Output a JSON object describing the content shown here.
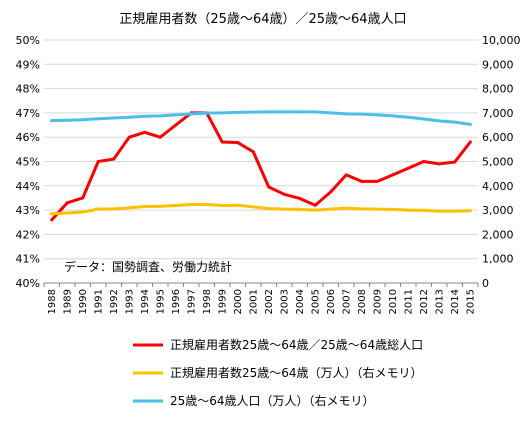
{
  "chart_data": {
    "type": "line",
    "title": "正規雇用者数（25歳～64歳）／25歳～64歳人口",
    "annotation": "データ：国勢調査、労働力統計",
    "x": [
      "1988",
      "1989",
      "1990",
      "1991",
      "1992",
      "1993",
      "1994",
      "1995",
      "1996",
      "1997",
      "1998",
      "1999",
      "2000",
      "2001",
      "2002",
      "2003",
      "2004",
      "2005",
      "2006",
      "2007",
      "2008",
      "2009",
      "2010",
      "2011",
      "2012",
      "2013",
      "2014",
      "2015"
    ],
    "y_left": {
      "min": 0.4,
      "max": 0.5,
      "step": 0.01,
      "tick_labels": [
        "40%",
        "41%",
        "42%",
        "43%",
        "44%",
        "45%",
        "46%",
        "47%",
        "48%",
        "49%",
        "50%"
      ]
    },
    "y_right": {
      "min": 0,
      "max": 10000,
      "step": 1000,
      "tick_labels": [
        "0",
        "1,000",
        "2,000",
        "3,000",
        "4,000",
        "5,000",
        "6,000",
        "7,000",
        "8,000",
        "9,000",
        "10,000"
      ]
    },
    "grid": true,
    "legend_position": "bottom",
    "series": [
      {
        "name": "正規雇用者数25歳～64歳／25歳～64歳総人口",
        "axis": "left",
        "color": "#ff0000",
        "values": [
          0.426,
          0.433,
          0.435,
          0.45,
          0.451,
          0.46,
          0.462,
          0.46,
          0.465,
          0.47,
          0.47,
          0.458,
          0.4578,
          0.454,
          0.4395,
          0.4365,
          0.4348,
          0.432,
          0.4375,
          0.4445,
          0.4418,
          0.4418,
          0.4445,
          0.4472,
          0.45,
          0.449,
          0.4498,
          0.458
        ]
      },
      {
        "name": "正規雇用者数25歳～64歳（万人）（右メモリ）",
        "axis": "right",
        "color": "#ffc000",
        "values": [
          2850,
          2880,
          2920,
          3040,
          3050,
          3090,
          3150,
          3160,
          3190,
          3230,
          3230,
          3190,
          3200,
          3130,
          3060,
          3040,
          3030,
          3000,
          3040,
          3080,
          3050,
          3040,
          3030,
          3000,
          2990,
          2960,
          2960,
          2980
        ]
      },
      {
        "name": "25歳～64歳人口（万人）（右メモリ）",
        "axis": "right",
        "color": "#4bbfe8",
        "values": [
          6680,
          6700,
          6720,
          6760,
          6790,
          6820,
          6860,
          6880,
          6920,
          6960,
          6990,
          7000,
          7020,
          7030,
          7040,
          7040,
          7040,
          7040,
          7000,
          6960,
          6950,
          6920,
          6880,
          6820,
          6750,
          6670,
          6620,
          6530
        ]
      }
    ]
  }
}
